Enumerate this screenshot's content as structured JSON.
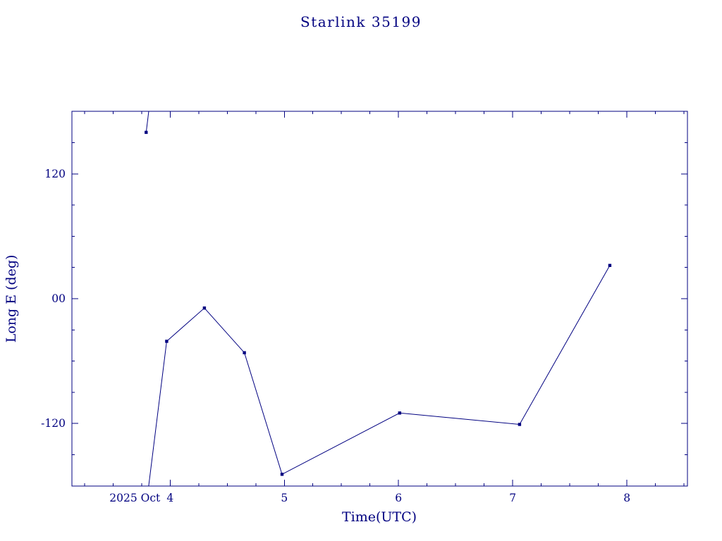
{
  "colors": {
    "ink": "#000080",
    "background": "#ffffff"
  },
  "chart_data": {
    "type": "line",
    "title": "Starlink 35199",
    "xlabel": "Time(UTC)",
    "ylabel": "Long E (deg)",
    "x_unit": "day of October 2025 (UTC)",
    "y_unit": "degrees east longitude",
    "xlim": [
      3.14,
      8.53
    ],
    "ylim": [
      -180.3,
      180.3
    ],
    "wrap_at": 180,
    "grid": false,
    "legend": null,
    "marker": "square",
    "line_color": "#000080",
    "xticks": [
      {
        "value": 4,
        "label": "4",
        "prefix": "2025 Oct"
      },
      {
        "value": 5,
        "label": "5"
      },
      {
        "value": 6,
        "label": "6"
      },
      {
        "value": 7,
        "label": "7"
      },
      {
        "value": 8,
        "label": "8"
      }
    ],
    "xminor_step": 0.25,
    "yticks": [
      {
        "value": 120,
        "label": "120"
      },
      {
        "value": 0,
        "label": "00"
      },
      {
        "value": -120,
        "label": "-120"
      }
    ],
    "yminor_step": 30,
    "points": [
      {
        "t": 3.79,
        "lon": 160
      },
      {
        "t": 3.97,
        "lon": -41
      },
      {
        "t": 4.3,
        "lon": -9
      },
      {
        "t": 4.65,
        "lon": -52
      },
      {
        "t": 4.98,
        "lon": -169
      },
      {
        "t": 6.01,
        "lon": -110
      },
      {
        "t": 7.06,
        "lon": -121
      },
      {
        "t": 7.85,
        "lon": 32
      }
    ]
  }
}
